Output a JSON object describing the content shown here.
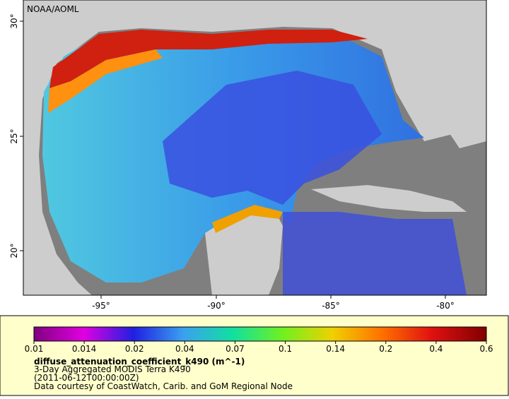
{
  "map": {
    "title": "NOAA/AOML",
    "lat_labels": [
      "30°",
      "25°",
      "20°"
    ],
    "lon_labels": [
      "-95°",
      "-90°",
      "-85°",
      "-80°"
    ]
  },
  "legend": {
    "ticks": [
      "0.01",
      "0.014",
      "0.02",
      "0.04",
      "0.07",
      "0.1",
      "0.14",
      "0.2",
      "0.4",
      "0.6"
    ],
    "title": "diffuse_attenuation_coefficient_k490 (m^-1)",
    "lines": [
      "3-Day Aggregated MODIS Terra K490",
      "(2011-06-12T00:00:00Z)",
      "Data courtesy of CoastWatch, Carib. and GoM Regional Node"
    ]
  }
}
